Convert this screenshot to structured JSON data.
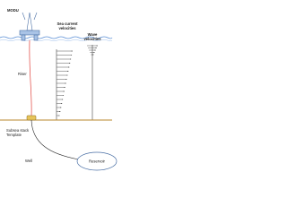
{
  "labels": {
    "modu": "MODU",
    "riser": "Riser",
    "subsea": [
      "Subsea stack",
      "Template"
    ],
    "well": "Well",
    "reservoir": "Reservoir",
    "sea_current": [
      "Sea current",
      "velocities"
    ],
    "wave": [
      "Wave",
      "velocities"
    ]
  }
}
